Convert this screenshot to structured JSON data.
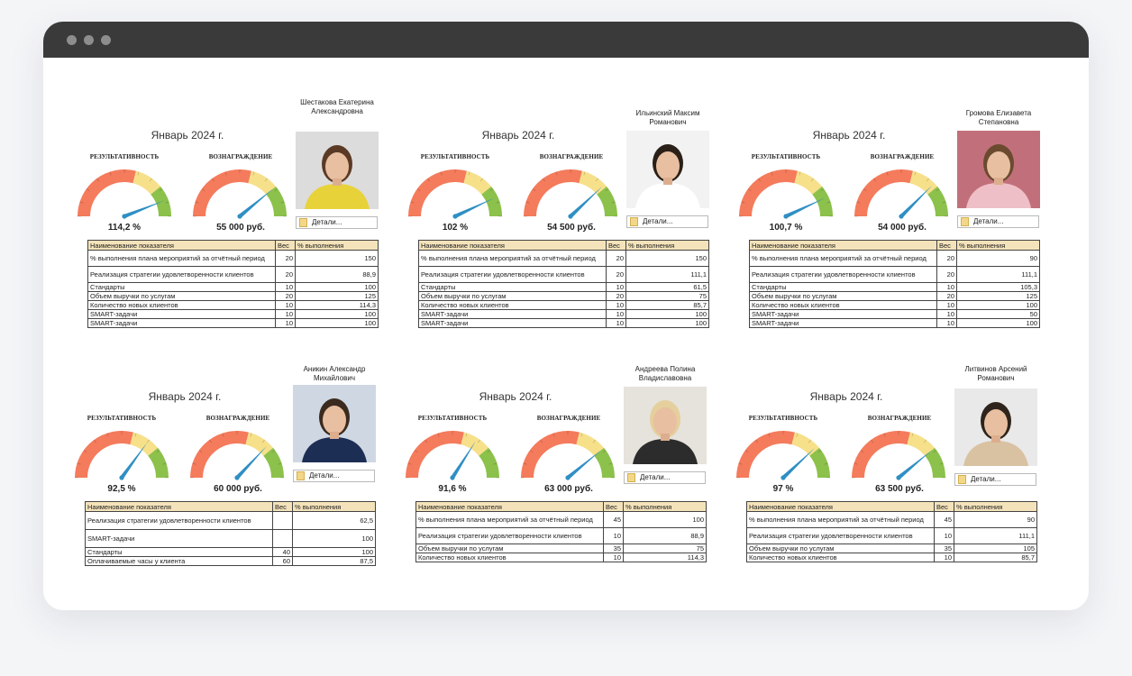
{
  "window": {
    "accent": "#3a3a3a"
  },
  "labels": {
    "result": "РЕЗУЛЬТАТИВНОСТЬ",
    "reward": "ВОЗНАГРАЖДЕНИЕ",
    "details": "Детали...",
    "col_name": "Наименование показателя",
    "col_weight": "Вес",
    "col_percent": "% выполнения"
  },
  "gauge_colors": {
    "red": "#f47b5c",
    "yellow": "#f7e08a",
    "green": "#8cc14b",
    "needle": "#2f8fc4"
  },
  "cards": [
    {
      "month": "Январь 2024 г.",
      "name": "Шестакова Екатерина Александровна",
      "result_value": "114,2 %",
      "result_fraction": 0.88,
      "reward_value": "55 000 руб.",
      "reward_fraction": 0.78,
      "rows": [
        {
          "name": "% выполнения плана мероприятий за отчётный период",
          "weight": "20",
          "percent": "150"
        },
        {
          "name": "Реализация стратегии удовлетворенности клиентов",
          "weight": "20",
          "percent": "88,9"
        },
        {
          "name": "Стандарты",
          "weight": "10",
          "percent": "100"
        },
        {
          "name": "Объем выручки по услугам",
          "weight": "20",
          "percent": "125"
        },
        {
          "name": "Количество новых клиентов",
          "weight": "10",
          "percent": "114,3"
        },
        {
          "name": "SMART-задачи",
          "weight": "10",
          "percent": "100"
        },
        {
          "name": "SMART-задачи",
          "weight": "10",
          "percent": "100"
        }
      ]
    },
    {
      "month": "Январь 2024 г.",
      "name": "Ильинский Максим Романович",
      "result_value": "102 %",
      "result_fraction": 0.86,
      "reward_value": "54 500 руб.",
      "reward_fraction": 0.76,
      "rows": [
        {
          "name": "% выполнения плана мероприятий за отчётный период",
          "weight": "20",
          "percent": "150"
        },
        {
          "name": "Реализация стратегии удовлетворенности клиентов",
          "weight": "20",
          "percent": "111,1"
        },
        {
          "name": "Стандарты",
          "weight": "10",
          "percent": "61,5"
        },
        {
          "name": "Объем выручки по услугам",
          "weight": "20",
          "percent": "75"
        },
        {
          "name": "Количество новых клиентов",
          "weight": "10",
          "percent": "85,7"
        },
        {
          "name": "SMART-задачи",
          "weight": "10",
          "percent": "100"
        },
        {
          "name": "SMART-задачи",
          "weight": "10",
          "percent": "100"
        }
      ]
    },
    {
      "month": "Январь 2024 г.",
      "name": "Громова Елизавета Степановна",
      "result_value": "100,7 %",
      "result_fraction": 0.86,
      "reward_value": "54 000 руб.",
      "reward_fraction": 0.75,
      "rows": [
        {
          "name": "% выполнения плана мероприятий за отчётный период",
          "weight": "20",
          "percent": "90"
        },
        {
          "name": "Реализация стратегии удовлетворенности клиентов",
          "weight": "20",
          "percent": "111,1"
        },
        {
          "name": "Стандарты",
          "weight": "10",
          "percent": "105,3"
        },
        {
          "name": "Объем выручки по услугам",
          "weight": "20",
          "percent": "125"
        },
        {
          "name": "Количество новых клиентов",
          "weight": "10",
          "percent": "100"
        },
        {
          "name": "SMART-задачи",
          "weight": "10",
          "percent": "50"
        },
        {
          "name": "SMART-задачи",
          "weight": "10",
          "percent": "100"
        }
      ]
    },
    {
      "month": "Январь 2024 г.",
      "name": "Аникин Александр Михайлович",
      "result_value": "92,5 %",
      "result_fraction": 0.7,
      "reward_value": "60 000 руб.",
      "reward_fraction": 0.74,
      "rows": [
        {
          "name": "Реализация стратегии удовлетворенности клиентов",
          "weight": "",
          "percent": "62,5",
          "tall": true
        },
        {
          "name": "SMART-задачи",
          "weight": "",
          "percent": "100",
          "tall": true
        },
        {
          "name": "Стандарты",
          "weight": "40",
          "percent": "100"
        },
        {
          "name": "Оплачиваемые часы у клиента",
          "weight": "60",
          "percent": "87,5"
        }
      ]
    },
    {
      "month": "Январь 2024 г.",
      "name": "Андреева Полина Владиславовна",
      "result_value": "91,6 %",
      "result_fraction": 0.68,
      "reward_value": "63 000 руб.",
      "reward_fraction": 0.78,
      "rows": [
        {
          "name": "% выполнения плана мероприятий за отчётный период",
          "weight": "45",
          "percent": "100"
        },
        {
          "name": "Реализация стратегии удовлетворенности клиентов",
          "weight": "10",
          "percent": "88,9"
        },
        {
          "name": "Объем выручки по услугам",
          "weight": "35",
          "percent": "75"
        },
        {
          "name": "Количество новых клиентов",
          "weight": "10",
          "percent": "114,3"
        }
      ]
    },
    {
      "month": "Январь 2024 г.",
      "name": "Литвинов Арсений Романович",
      "result_value": "97 %",
      "result_fraction": 0.76,
      "reward_value": "63 500 руб.",
      "reward_fraction": 0.78,
      "rows": [
        {
          "name": "% выполнения плана мероприятий за отчётный период",
          "weight": "45",
          "percent": "90"
        },
        {
          "name": "Реализация стратегии удовлетворенности клиентов",
          "weight": "10",
          "percent": "111,1"
        },
        {
          "name": "Объем выручки по услугам",
          "weight": "35",
          "percent": "105"
        },
        {
          "name": "Количество новых клиентов",
          "weight": "10",
          "percent": "85,7"
        }
      ]
    }
  ]
}
